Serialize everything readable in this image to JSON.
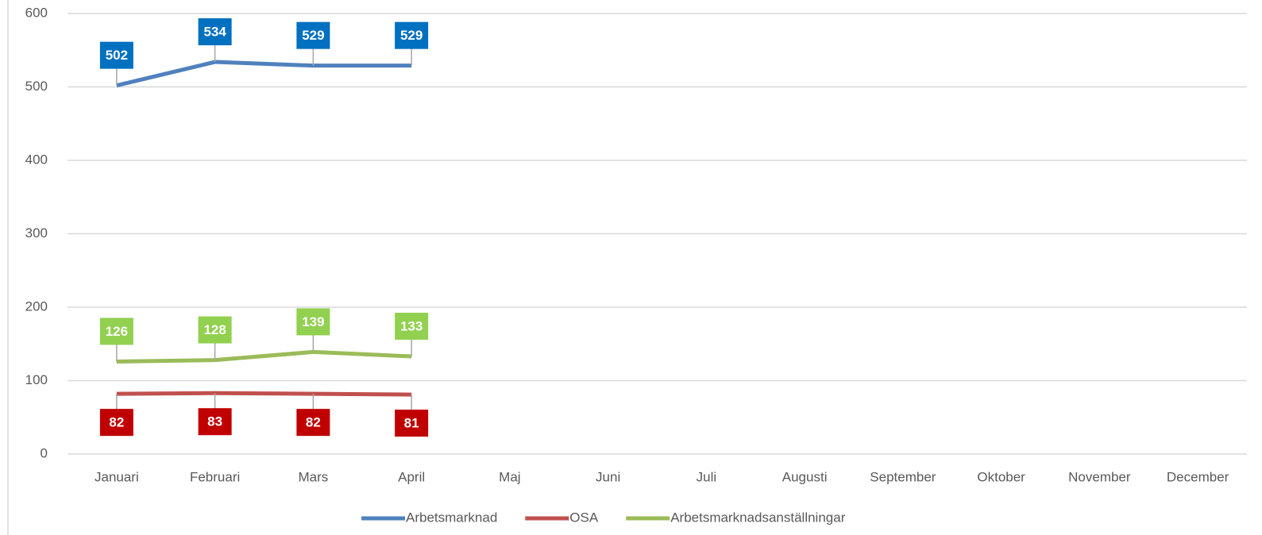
{
  "chart_data": {
    "type": "line",
    "categories": [
      "Januari",
      "Februari",
      "Mars",
      "April",
      "Maj",
      "Juni",
      "Juli",
      "Augusti",
      "September",
      "Oktober",
      "November",
      "December"
    ],
    "series": [
      {
        "name": "Arbetsmarknad",
        "color": "#4f81bd",
        "label_color": "#0070c0",
        "label_position": "above",
        "values": [
          502,
          534,
          529,
          529,
          null,
          null,
          null,
          null,
          null,
          null,
          null,
          null
        ]
      },
      {
        "name": "OSA",
        "color": "#c0504d",
        "label_color": "#c00000",
        "label_position": "below",
        "values": [
          82,
          83,
          82,
          81,
          null,
          null,
          null,
          null,
          null,
          null,
          null,
          null
        ]
      },
      {
        "name": "Arbetsmarknadsanställningar",
        "color": "#9bbb59",
        "label_color": "#92d050",
        "label_position": "above",
        "values": [
          126,
          128,
          139,
          133,
          null,
          null,
          null,
          null,
          null,
          null,
          null,
          null
        ]
      }
    ],
    "ylim": [
      0,
      600
    ],
    "yticks": [
      0,
      100,
      200,
      300,
      400,
      500,
      600
    ],
    "grid": true,
    "legend": "bottom"
  }
}
